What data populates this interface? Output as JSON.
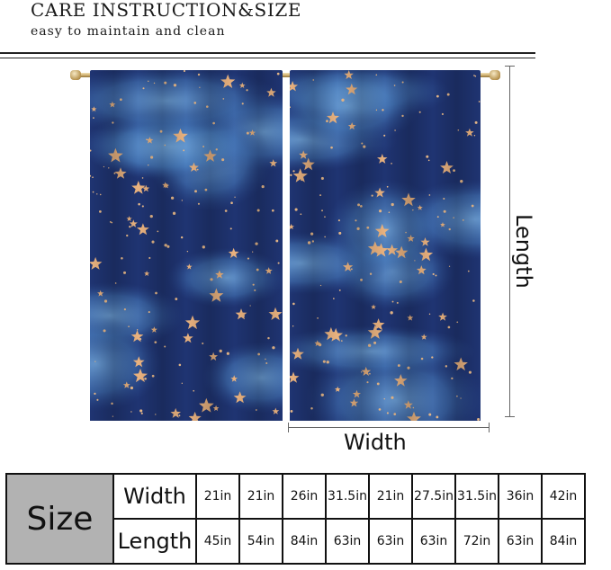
{
  "header": {
    "title": "CARE INSTRUCTION&SIZE",
    "subtitle": "easy to maintain and clean"
  },
  "diagram": {
    "length_label": "Length",
    "width_label": "Width"
  },
  "size_table": {
    "size_label": "Size",
    "width_label": "Width",
    "length_label": "Length",
    "widths": [
      "21in",
      "21in",
      "26in",
      "31.5in",
      "21in",
      "27.5in",
      "31.5in",
      "36in",
      "42in"
    ],
    "lengths": [
      "45in",
      "54in",
      "84in",
      "63in",
      "63in",
      "63in",
      "72in",
      "63in",
      "84in"
    ]
  }
}
